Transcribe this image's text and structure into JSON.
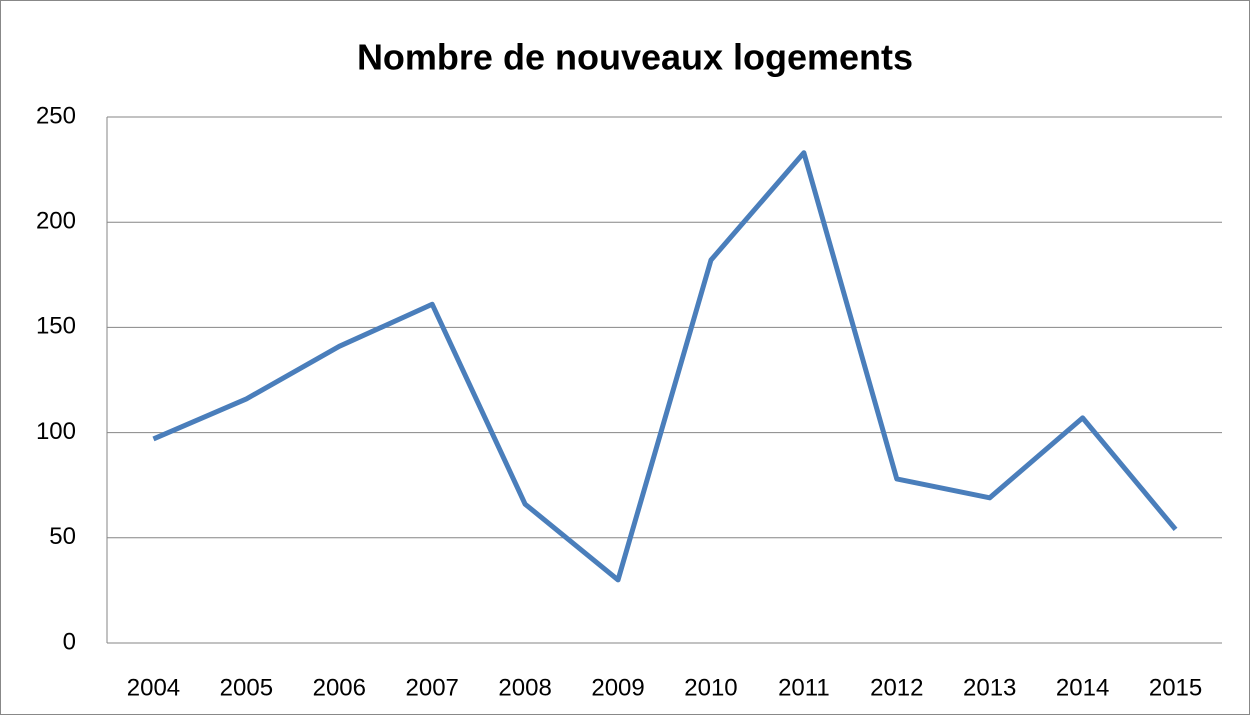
{
  "chart_data": {
    "type": "line",
    "title": "Nombre de nouveaux logements",
    "categories": [
      "2004",
      "2005",
      "2006",
      "2007",
      "2008",
      "2009",
      "2010",
      "2011",
      "2012",
      "2013",
      "2014",
      "2015"
    ],
    "series": [
      {
        "name": "Nombre de nouveaux logements",
        "color": "#4a7ebb",
        "values": [
          97,
          116,
          141,
          161,
          66,
          30,
          182,
          233,
          78,
          69,
          107,
          54
        ]
      }
    ],
    "ylim": [
      0,
      250
    ],
    "yticks": [
      0,
      50,
      100,
      150,
      200,
      250
    ],
    "grid": true,
    "legend": false
  }
}
